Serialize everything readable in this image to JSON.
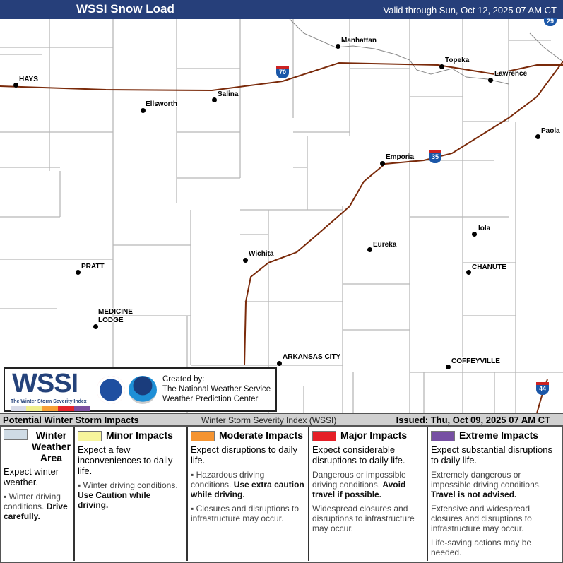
{
  "header": {
    "title": "WSSI Snow Load",
    "valid": "Valid through Sun, Oct 12, 2025 07 AM CT"
  },
  "map": {
    "cities": [
      {
        "name": "HAYS",
        "dot": [
          22,
          120
        ],
        "lbl": [
          27,
          107
        ]
      },
      {
        "name": "Ellsworth",
        "dot": [
          202,
          156
        ],
        "lbl": [
          206,
          142
        ]
      },
      {
        "name": "Salina",
        "dot": [
          303,
          141
        ],
        "lbl": [
          308,
          128
        ]
      },
      {
        "name": "Manhattan",
        "dot": [
          478,
          65
        ],
        "lbl": [
          483,
          52
        ]
      },
      {
        "name": "Topeka",
        "dot": [
          625,
          94
        ],
        "lbl": [
          630,
          80
        ]
      },
      {
        "name": "Lawrence",
        "dot": [
          694,
          113
        ],
        "lbl": [
          700,
          99
        ]
      },
      {
        "name": "Paola",
        "dot": [
          761,
          193
        ],
        "lbl": [
          766,
          180
        ]
      },
      {
        "name": "Emporia",
        "dot": [
          541,
          231
        ],
        "lbl": [
          546,
          217
        ]
      },
      {
        "name": "Iola",
        "dot": [
          671,
          331
        ],
        "lbl": [
          677,
          318
        ]
      },
      {
        "name": "Eureka",
        "dot": [
          523,
          353
        ],
        "lbl": [
          528,
          341
        ]
      },
      {
        "name": "Wichita",
        "dot": [
          347,
          368
        ],
        "lbl": [
          352,
          354
        ]
      },
      {
        "name": "CHANUTE",
        "dot": [
          663,
          385
        ],
        "lbl": [
          668,
          373
        ]
      },
      {
        "name": "PRATT",
        "dot": [
          110,
          385
        ],
        "lbl": [
          115,
          372
        ]
      },
      {
        "name": "MEDICINE\nLODGE",
        "dot": [
          135,
          462
        ],
        "lbl": [
          139,
          436
        ]
      },
      {
        "name": "ARKANSAS CITY",
        "dot": [
          395,
          514
        ],
        "lbl": [
          400,
          500
        ]
      },
      {
        "name": "COFFEYVILLE",
        "dot": [
          634,
          519
        ],
        "lbl": [
          639,
          506
        ]
      }
    ],
    "interstates": [
      {
        "num": "70",
        "color": "#1b57a8"
      },
      {
        "num": "35",
        "color": "#1b57a8"
      },
      {
        "num": "29",
        "color": "#1b57a8"
      },
      {
        "num": "44",
        "color": "#1b57a8"
      }
    ],
    "road_color": "#7a2a0a"
  },
  "logo": {
    "wssi": "WSSI",
    "subtitle": "The Winter Storm Severity Index",
    "created": [
      "Created by:",
      "The National Weather Service",
      "Weather Prediction Center"
    ],
    "scale_colors": [
      "#d8dbe8",
      "#f0ef8c",
      "#f7a035",
      "#e3242b",
      "#7b4fa0"
    ]
  },
  "bar": {
    "left": "Potential Winter Storm Impacts",
    "middle": "Winter Storm Severity Index (WSSI)",
    "right": "Issued: Thu, Oct 09, 2025 07 AM CT"
  },
  "legend": [
    {
      "label": "Winter Weather Area",
      "color": "#cfdbe5",
      "lead": "Expect winter weather.",
      "items": [
        {
          "t": "Winter driving conditions. ",
          "b": "Drive carefully."
        }
      ]
    },
    {
      "label": "Minor Impacts",
      "color": "#f7f59c",
      "lead": "Expect a few inconveniences to daily life.",
      "items": [
        {
          "t": "Winter driving conditions. ",
          "b": "Use Caution while driving."
        }
      ]
    },
    {
      "label": "Moderate Impacts",
      "color": "#f59431",
      "lead": "Expect disruptions to daily life.",
      "items": [
        {
          "t": "Hazardous driving conditions. ",
          "b": "Use extra caution while driving."
        },
        {
          "t": "Closures and disruptions to infrastructure may occur.",
          "b": ""
        }
      ]
    },
    {
      "label": "Major Impacts",
      "color": "#e51f27",
      "lead": "Expect considerable disruptions to daily life.",
      "items": [
        {
          "t": "Dangerous or impossible driving conditions. ",
          "b": "Avoid travel if possible."
        },
        {
          "t": "Widespread closures and disruptions to infrastructure may occur.",
          "b": ""
        }
      ]
    },
    {
      "label": "Extreme Impacts",
      "color": "#7750a3",
      "lead": "Expect substantial disruptions to daily life.",
      "items": [
        {
          "t": "Extremely dangerous or impossible driving conditions. ",
          "b": "Travel is not advised."
        },
        {
          "t": "Extensive and widespread closures and disruptions to infrastructure may occur.",
          "b": ""
        },
        {
          "t": "Life-saving actions may be needed.",
          "b": ""
        }
      ]
    }
  ]
}
